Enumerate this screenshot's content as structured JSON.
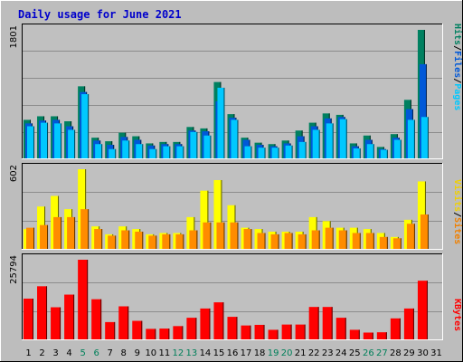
{
  "chart_data": [
    {
      "type": "bar",
      "title": "Daily usage for June 2021",
      "panel": "hits_files_pages",
      "ymax": 1801,
      "ymax_label": "1801",
      "categories": [
        "1",
        "2",
        "3",
        "4",
        "5",
        "6",
        "7",
        "8",
        "9",
        "10",
        "11",
        "12",
        "13",
        "14",
        "15",
        "16",
        "17",
        "18",
        "19",
        "20",
        "21",
        "22",
        "23",
        "24",
        "25",
        "26",
        "27",
        "28",
        "29",
        "30",
        "31"
      ],
      "weekend_days": [
        "5",
        "6",
        "12",
        "13",
        "19",
        "20",
        "26",
        "27"
      ],
      "legend": [
        {
          "label": "Pages",
          "color": "#00c8ff"
        },
        {
          "label": "Files",
          "color": "#0058d8"
        },
        {
          "label": "Hits",
          "color": "#008060"
        }
      ],
      "separator": "/",
      "series": [
        {
          "name": "Hits",
          "color": "#008060",
          "values": [
            540,
            590,
            590,
            520,
            1010,
            290,
            240,
            360,
            310,
            210,
            230,
            230,
            440,
            420,
            1070,
            620,
            290,
            220,
            200,
            250,
            390,
            500,
            630,
            610,
            210,
            320,
            160,
            340,
            820,
            1801,
            0
          ]
        },
        {
          "name": "Files",
          "color": "#0058d8",
          "values": [
            490,
            530,
            540,
            450,
            930,
            250,
            190,
            300,
            260,
            180,
            200,
            200,
            390,
            380,
            800,
            570,
            260,
            190,
            170,
            210,
            310,
            450,
            560,
            580,
            170,
            260,
            130,
            290,
            690,
            1320,
            0
          ]
        },
        {
          "name": "Pages",
          "color": "#00c8ff",
          "values": [
            450,
            500,
            490,
            400,
            900,
            200,
            130,
            250,
            200,
            130,
            170,
            170,
            370,
            320,
            990,
            540,
            170,
            150,
            150,
            180,
            230,
            400,
            490,
            550,
            140,
            200,
            120,
            260,
            540,
            580,
            0
          ]
        }
      ]
    },
    {
      "type": "bar",
      "panel": "visits_sites",
      "ymax": 602,
      "ymax_label": "602",
      "categories": [
        "1",
        "2",
        "3",
        "4",
        "5",
        "6",
        "7",
        "8",
        "9",
        "10",
        "11",
        "12",
        "13",
        "14",
        "15",
        "16",
        "17",
        "18",
        "19",
        "20",
        "21",
        "22",
        "23",
        "24",
        "25",
        "26",
        "27",
        "28",
        "29",
        "30",
        "31"
      ],
      "legend": [
        {
          "label": "Sites",
          "color": "#f08000"
        },
        {
          "label": "Visits",
          "color": "#f0d000"
        }
      ],
      "separator": "/",
      "series": [
        {
          "name": "Visits",
          "color": "#ffff00",
          "values": [
            150,
            320,
            400,
            300,
            602,
            170,
            110,
            170,
            150,
            110,
            120,
            120,
            240,
            440,
            520,
            330,
            160,
            150,
            130,
            130,
            130,
            240,
            210,
            160,
            160,
            150,
            120,
            90,
            220,
            510,
            0
          ]
        },
        {
          "name": "Sites",
          "color": "#ff8c00",
          "values": [
            160,
            180,
            240,
            240,
            300,
            150,
            100,
            140,
            130,
            100,
            110,
            110,
            140,
            200,
            200,
            200,
            150,
            120,
            110,
            120,
            110,
            140,
            160,
            140,
            120,
            120,
            90,
            80,
            190,
            260,
            0
          ]
        }
      ]
    },
    {
      "type": "bar",
      "panel": "kbytes",
      "ymax": 25794,
      "ymax_label": "25794",
      "categories": [
        "1",
        "2",
        "3",
        "4",
        "5",
        "6",
        "7",
        "8",
        "9",
        "10",
        "11",
        "12",
        "13",
        "14",
        "15",
        "16",
        "17",
        "18",
        "19",
        "20",
        "21",
        "22",
        "23",
        "24",
        "25",
        "26",
        "27",
        "28",
        "29",
        "30",
        "31"
      ],
      "legend": [
        {
          "label": "KBytes",
          "color": "#ff0000"
        }
      ],
      "series": [
        {
          "name": "KBytes",
          "color": "#ff0000",
          "values": [
            13200,
            17200,
            10400,
            14500,
            25794,
            13000,
            5600,
            10700,
            6000,
            3400,
            3500,
            4300,
            7000,
            10000,
            12000,
            7300,
            4500,
            4700,
            3100,
            4800,
            4800,
            10500,
            10500,
            7000,
            3100,
            2200,
            2300,
            6800,
            10000,
            19000,
            0
          ]
        }
      ]
    }
  ]
}
